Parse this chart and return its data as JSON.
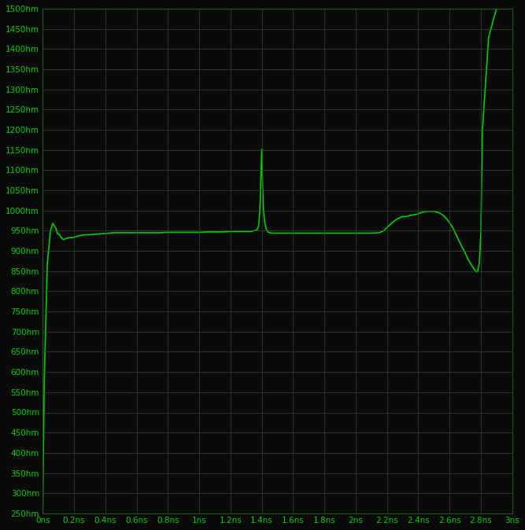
{
  "bg_color": "#0a0a0a",
  "grid_color": "#2d4d2d",
  "line_color": "#00cc00",
  "line_width": 1.2,
  "xmin": 0.0,
  "xmax": 3.0,
  "ymin": 250,
  "ymax": 1500,
  "x_ticks": [
    0,
    0.2,
    0.4,
    0.6,
    0.8,
    1.0,
    1.2,
    1.4,
    1.6,
    1.8,
    2.0,
    2.2,
    2.4,
    2.6,
    2.8,
    3.0
  ],
  "y_ticks": [
    250,
    300,
    350,
    400,
    450,
    500,
    550,
    600,
    650,
    700,
    750,
    800,
    850,
    900,
    950,
    1000,
    1050,
    1100,
    1150,
    1200,
    1250,
    1300,
    1350,
    1400,
    1450,
    1500
  ],
  "x_tick_labels": [
    "0ns",
    "0.2ns",
    "0.4ns",
    "0.6ns",
    "0.8ns",
    "1ns",
    "1.2ns",
    "1.4ns",
    "1.6ns",
    "1.8ns",
    "2ns",
    "2.2ns",
    "2.4ns",
    "2.6ns",
    "2.8ns",
    "3ns"
  ],
  "y_tick_labels": [
    "250hm",
    "300hm",
    "350hm",
    "400hm",
    "450hm",
    "500hm",
    "550hm",
    "600hm",
    "650hm",
    "700hm",
    "750hm",
    "800hm",
    "850hm",
    "900hm",
    "950hm",
    "1000hm",
    "1050hm",
    "1100hm",
    "1150hm",
    "1200hm",
    "1250hm",
    "1300hm",
    "1350hm",
    "1400hm",
    "1450hm",
    "1500hm"
  ],
  "signal_x": [
    0.0,
    0.01,
    0.03,
    0.05,
    0.065,
    0.075,
    0.085,
    0.095,
    0.105,
    0.115,
    0.125,
    0.135,
    0.145,
    0.16,
    0.175,
    0.19,
    0.21,
    0.24,
    0.27,
    0.3,
    0.35,
    0.4,
    0.45,
    0.5,
    0.55,
    0.6,
    0.65,
    0.7,
    0.75,
    0.8,
    0.85,
    0.9,
    0.95,
    1.0,
    1.05,
    1.1,
    1.15,
    1.2,
    1.25,
    1.3,
    1.33,
    1.35,
    1.37,
    1.38,
    1.385,
    1.39,
    1.395,
    1.4,
    1.405,
    1.41,
    1.42,
    1.43,
    1.44,
    1.45,
    1.47,
    1.5,
    1.55,
    1.6,
    1.65,
    1.7,
    1.75,
    1.8,
    1.85,
    1.9,
    1.95,
    2.0,
    2.05,
    2.1,
    2.15,
    2.18,
    2.2,
    2.22,
    2.24,
    2.26,
    2.28,
    2.3,
    2.32,
    2.35,
    2.38,
    2.4,
    2.42,
    2.44,
    2.46,
    2.48,
    2.5,
    2.52,
    2.54,
    2.56,
    2.58,
    2.6,
    2.62,
    2.64,
    2.66,
    2.68,
    2.7,
    2.72,
    2.74,
    2.76,
    2.77,
    2.78,
    2.79,
    2.8,
    2.81,
    2.85,
    2.9,
    3.0
  ],
  "signal_y": [
    250,
    580,
    870,
    950,
    968,
    962,
    955,
    942,
    942,
    935,
    930,
    928,
    930,
    932,
    933,
    933,
    935,
    938,
    940,
    940,
    942,
    943,
    945,
    945,
    945,
    945,
    945,
    945,
    945,
    946,
    946,
    946,
    946,
    946,
    947,
    947,
    947,
    948,
    948,
    948,
    948,
    950,
    952,
    962,
    985,
    1020,
    1090,
    1152,
    1070,
    1005,
    968,
    953,
    947,
    945,
    944,
    944,
    944,
    944,
    944,
    944,
    944,
    944,
    944,
    944,
    944,
    944,
    944,
    944,
    945,
    950,
    958,
    965,
    972,
    978,
    982,
    985,
    985,
    988,
    990,
    992,
    995,
    997,
    998,
    998,
    998,
    996,
    993,
    988,
    980,
    970,
    958,
    942,
    925,
    910,
    895,
    878,
    865,
    853,
    848,
    850,
    870,
    940,
    1200,
    1430,
    1500,
    1500
  ]
}
